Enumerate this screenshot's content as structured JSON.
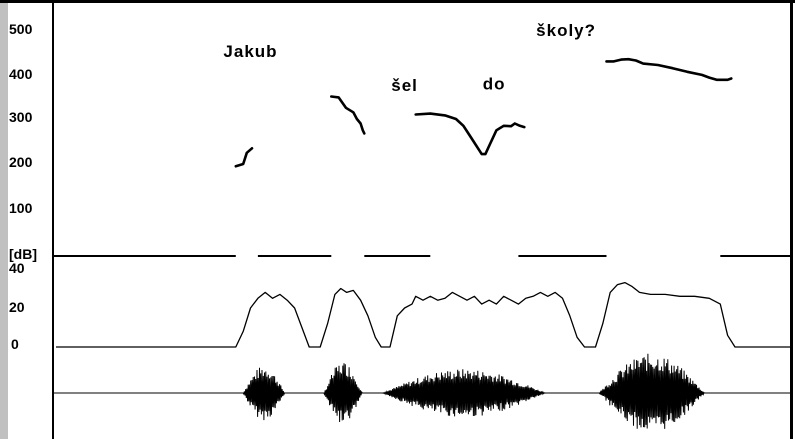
{
  "chart_data": {
    "type": "line",
    "title": "",
    "words": [
      "Jakub",
      "šel",
      "do",
      "školy?"
    ],
    "pitch_panel": {
      "ytick_labels": [
        "500",
        "400",
        "300",
        "200",
        "100"
      ],
      "ylim": [
        0,
        520
      ],
      "x_range": [
        0,
        100
      ],
      "series": [
        {
          "points": [
            [
              24.5,
              195
            ],
            [
              25.5,
              200
            ],
            [
              26.0,
              225
            ],
            [
              26.7,
              235
            ]
          ]
        },
        {
          "points": [
            [
              37.5,
              350
            ],
            [
              38.5,
              348
            ],
            [
              39.5,
              325
            ],
            [
              40.5,
              315
            ],
            [
              41.0,
              300
            ],
            [
              41.5,
              290
            ],
            [
              41.8,
              275
            ],
            [
              42.0,
              268
            ]
          ]
        },
        {
          "points": [
            [
              49.0,
              310
            ],
            [
              51.0,
              312
            ],
            [
              53.0,
              308
            ],
            [
              54.5,
              300
            ],
            [
              55.5,
              285
            ],
            [
              56.5,
              260
            ],
            [
              57.5,
              235
            ],
            [
              58.0,
              222
            ],
            [
              58.5,
              222
            ],
            [
              59.0,
              240
            ],
            [
              60.0,
              275
            ],
            [
              61.0,
              285
            ],
            [
              62.0,
              284
            ],
            [
              62.5,
              290
            ],
            [
              63.2,
              285
            ],
            [
              63.8,
              282
            ]
          ]
        },
        {
          "points": [
            [
              75.0,
              428
            ],
            [
              76.0,
              428
            ],
            [
              77.0,
              432
            ],
            [
              78.0,
              433
            ],
            [
              79.0,
              430
            ],
            [
              80.0,
              423
            ],
            [
              82.0,
              420
            ],
            [
              84.0,
              413
            ],
            [
              86.0,
              405
            ],
            [
              88.0,
              398
            ],
            [
              89.0,
              392
            ],
            [
              90.0,
              387
            ],
            [
              91.5,
              387
            ],
            [
              92.0,
              390
            ]
          ]
        }
      ],
      "word_positions": [
        [
          26.5,
          438
        ],
        [
          47.5,
          362
        ],
        [
          59.7,
          366
        ],
        [
          69.5,
          485
        ]
      ]
    },
    "intensity_panel": {
      "ylabel": "[dB]",
      "ytick_labels": [
        "40",
        "20",
        "0"
      ],
      "ylim": [
        0,
        60
      ],
      "x_range": [
        0,
        100
      ],
      "silence_segments": [
        [
          0,
          24.5
        ],
        [
          27.5,
          37.5
        ],
        [
          42,
          51
        ],
        [
          63,
          75
        ],
        [
          90.5,
          100
        ]
      ],
      "contour": [
        [
          0,
          0
        ],
        [
          24.5,
          0
        ],
        [
          25.5,
          8
        ],
        [
          26.5,
          20
        ],
        [
          27.5,
          25
        ],
        [
          28.5,
          28
        ],
        [
          29.5,
          25
        ],
        [
          30.5,
          27
        ],
        [
          31.5,
          24
        ],
        [
          32.5,
          20
        ],
        [
          33.5,
          10
        ],
        [
          34.5,
          0
        ],
        [
          36.0,
          0
        ],
        [
          37.0,
          12
        ],
        [
          38.0,
          27
        ],
        [
          38.8,
          30
        ],
        [
          39.6,
          28
        ],
        [
          40.5,
          29
        ],
        [
          41.5,
          24
        ],
        [
          42.5,
          16
        ],
        [
          43.5,
          5
        ],
        [
          44.3,
          0
        ],
        [
          45.5,
          0
        ],
        [
          46.5,
          16
        ],
        [
          47.5,
          20
        ],
        [
          48.5,
          22
        ],
        [
          49.0,
          26
        ],
        [
          50.0,
          24
        ],
        [
          51.0,
          26
        ],
        [
          52.0,
          24
        ],
        [
          53.0,
          25
        ],
        [
          54.0,
          28
        ],
        [
          55.0,
          26
        ],
        [
          56.0,
          24
        ],
        [
          57.0,
          26
        ],
        [
          58.0,
          22
        ],
        [
          59.0,
          24
        ],
        [
          60.0,
          22
        ],
        [
          61.0,
          26
        ],
        [
          62.0,
          24
        ],
        [
          63.0,
          22
        ],
        [
          64.0,
          25
        ],
        [
          65.0,
          26
        ],
        [
          66.0,
          28
        ],
        [
          67.0,
          26
        ],
        [
          68.0,
          28
        ],
        [
          69.0,
          25
        ],
        [
          70.0,
          16
        ],
        [
          71.0,
          5
        ],
        [
          72.0,
          0
        ],
        [
          73.5,
          0
        ],
        [
          74.5,
          12
        ],
        [
          75.5,
          28
        ],
        [
          76.5,
          32
        ],
        [
          77.5,
          33
        ],
        [
          78.5,
          31
        ],
        [
          79.5,
          28
        ],
        [
          81.0,
          27
        ],
        [
          83.0,
          27
        ],
        [
          85.0,
          26
        ],
        [
          87.0,
          26
        ],
        [
          89.0,
          25
        ],
        [
          90.5,
          22
        ],
        [
          91.5,
          6
        ],
        [
          92.5,
          0
        ],
        [
          100,
          0
        ]
      ]
    },
    "waveform_panel": {
      "x_range": [
        0,
        100
      ],
      "amplitude_range": [
        -1,
        1
      ],
      "bursts": [
        {
          "start": 25.5,
          "end": 32.0,
          "amplitude": 0.62
        },
        {
          "start": 36.5,
          "end": 42.5,
          "amplitude": 0.72
        },
        {
          "start": 44.5,
          "end": 70.0,
          "amplitude": 0.55
        },
        {
          "start": 74.0,
          "end": 90.5,
          "amplitude": 0.9
        }
      ]
    }
  },
  "colors": {
    "axis_strip": "#c0c0c0",
    "plot_background": "#ffffff",
    "ink": "#000000"
  }
}
